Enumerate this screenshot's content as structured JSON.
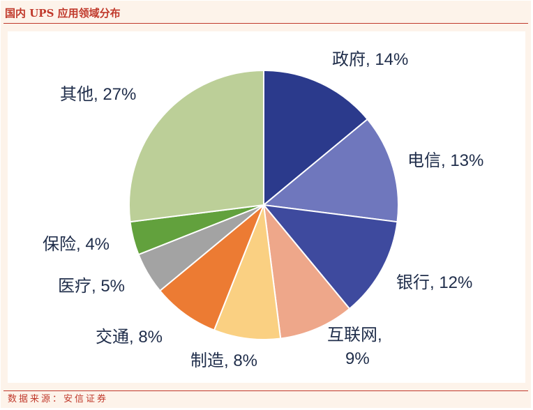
{
  "title": "国内 UPS 应用领域分布",
  "source": "数据来源：安信证券",
  "chart_data": {
    "type": "pie",
    "title": "国内 UPS 应用领域分布",
    "start": "12 o'clock",
    "direction": "clockwise",
    "slices": [
      {
        "name": "政府",
        "value": 14,
        "label": "政府, 14%",
        "color": "#2b3a8c"
      },
      {
        "name": "电信",
        "value": 13,
        "label": "电信, 13%",
        "color": "#6f77bd"
      },
      {
        "name": "银行",
        "value": 12,
        "label": "银行, 12%",
        "color": "#3e4a9e"
      },
      {
        "name": "互联网",
        "value": 9,
        "label": "互联网, 9%",
        "label_lines": [
          "互联网,",
          "9%"
        ],
        "color": "#eea78a"
      },
      {
        "name": "制造",
        "value": 8,
        "label": "制造, 8%",
        "color": "#fad082"
      },
      {
        "name": "交通",
        "value": 8,
        "label": "交通, 8%",
        "color": "#ec7b33"
      },
      {
        "name": "医疗",
        "value": 5,
        "label": "医疗, 5%",
        "color": "#a3a3a3"
      },
      {
        "name": "保险",
        "value": 4,
        "label": "保险, 4%",
        "color": "#62a13d"
      },
      {
        "name": "其他",
        "value": 27,
        "label": "其他, 27%",
        "color": "#bccf98"
      }
    ]
  }
}
